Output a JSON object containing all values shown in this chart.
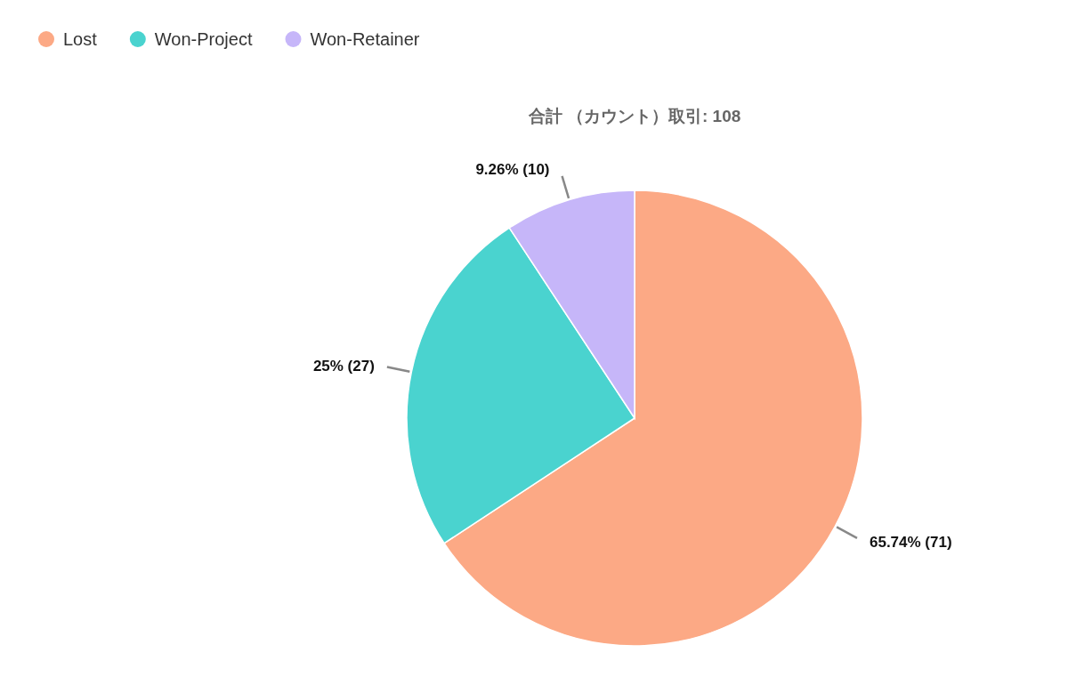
{
  "chart_data": {
    "type": "pie",
    "title": "合計 （カウント）取引: 108",
    "categories": [
      "Lost",
      "Won-Project",
      "Won-Retainer"
    ],
    "values": [
      71,
      27,
      10
    ],
    "colors": [
      "#fca985",
      "#4ad3cf",
      "#c6b6f9"
    ],
    "value_labels": [
      "65.74% (71)",
      "25% (27)",
      "9.26% (10)"
    ],
    "legend": "top left"
  }
}
